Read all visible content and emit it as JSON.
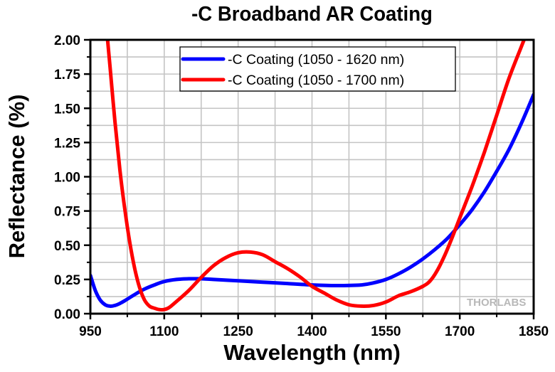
{
  "chart_data": {
    "type": "line",
    "title": "-C Broadband AR Coating",
    "xlabel": "Wavelength (nm)",
    "ylabel": "Reflectance (%)",
    "xlim": [
      950,
      1850
    ],
    "ylim": [
      0,
      2.0
    ],
    "xticks": [
      950,
      1100,
      1250,
      1400,
      1550,
      1700,
      1850
    ],
    "xtick_labels": [
      "950",
      "1100",
      "1250",
      "1400",
      "1550",
      "1700",
      "1850"
    ],
    "yticks": [
      0,
      0.25,
      0.5,
      0.75,
      1.0,
      1.25,
      1.5,
      1.75,
      2.0
    ],
    "ytick_labels": [
      "0.00",
      "0.25",
      "0.50",
      "0.75",
      "1.00",
      "1.25",
      "1.50",
      "1.75",
      "2.00"
    ],
    "grid": true,
    "legend_position": "top-center",
    "watermark": "THORLABS",
    "series": [
      {
        "name": "-C Coating (1050 - 1620 nm)",
        "color": "#0000ff",
        "x": [
          950,
          960,
          970,
          980,
          990,
          1000,
          1010,
          1020,
          1040,
          1060,
          1080,
          1100,
          1125,
          1150,
          1175,
          1200,
          1250,
          1300,
          1350,
          1400,
          1450,
          1500,
          1525,
          1550,
          1575,
          1600,
          1625,
          1650,
          1675,
          1700,
          1725,
          1750,
          1775,
          1800,
          1825,
          1850
        ],
        "values": [
          0.28,
          0.17,
          0.1,
          0.065,
          0.055,
          0.06,
          0.075,
          0.095,
          0.14,
          0.18,
          0.21,
          0.235,
          0.25,
          0.255,
          0.255,
          0.25,
          0.24,
          0.23,
          0.22,
          0.21,
          0.205,
          0.21,
          0.225,
          0.25,
          0.29,
          0.34,
          0.4,
          0.47,
          0.55,
          0.65,
          0.76,
          0.89,
          1.04,
          1.2,
          1.39,
          1.6
        ]
      },
      {
        "name": "-C Coating (1050 - 1700 nm)",
        "color": "#ff0000",
        "x": [
          985,
          990,
          1000,
          1010,
          1020,
          1030,
          1040,
          1050,
          1060,
          1070,
          1080,
          1090,
          1100,
          1110,
          1125,
          1150,
          1175,
          1200,
          1225,
          1250,
          1275,
          1300,
          1325,
          1350,
          1375,
          1400,
          1425,
          1450,
          1475,
          1500,
          1525,
          1550,
          1575,
          1600,
          1625,
          1640,
          1655,
          1670,
          1685,
          1700,
          1725,
          1750,
          1775,
          1800,
          1825,
          1835
        ],
        "values": [
          2.0,
          1.8,
          1.4,
          1.05,
          0.76,
          0.52,
          0.33,
          0.19,
          0.1,
          0.055,
          0.04,
          0.03,
          0.03,
          0.045,
          0.09,
          0.17,
          0.265,
          0.35,
          0.41,
          0.445,
          0.45,
          0.43,
          0.38,
          0.33,
          0.27,
          0.2,
          0.15,
          0.1,
          0.065,
          0.055,
          0.06,
          0.085,
          0.13,
          0.16,
          0.2,
          0.24,
          0.32,
          0.43,
          0.56,
          0.7,
          0.93,
          1.18,
          1.45,
          1.72,
          1.95,
          2.04
        ]
      }
    ]
  }
}
